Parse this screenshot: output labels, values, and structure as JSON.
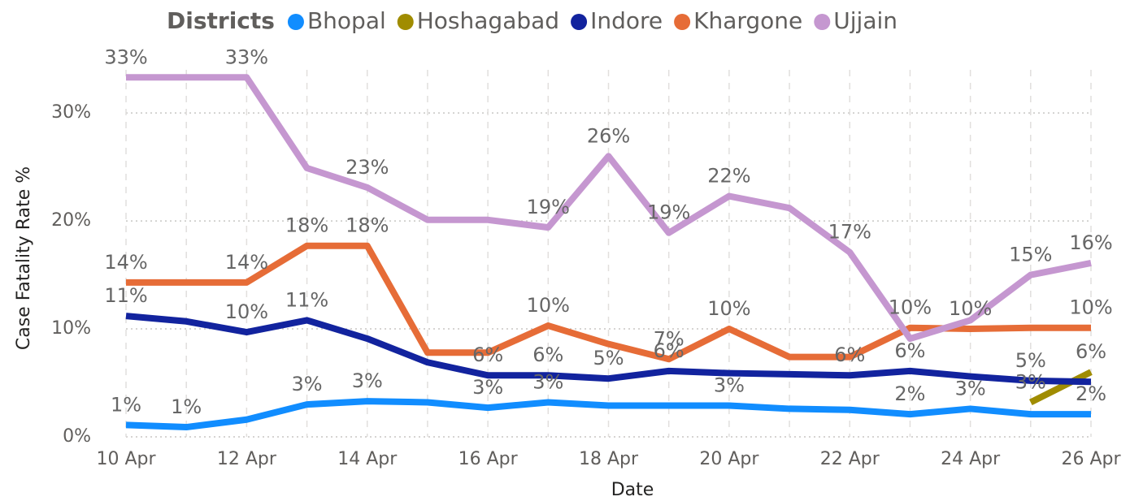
{
  "chart_data": {
    "type": "line",
    "legend_title": "Districts",
    "legend_position": "top",
    "x_label": "Date",
    "y_label": "Case Fatality Rate %",
    "categories": [
      "10 Apr",
      null,
      "12 Apr",
      null,
      "14 Apr",
      null,
      "16 Apr",
      null,
      "18 Apr",
      null,
      "20 Apr",
      null,
      "22 Apr",
      null,
      "24 Apr",
      null,
      "26 Apr"
    ],
    "ylim": [
      0,
      34
    ],
    "yticks": [
      {
        "value": 0,
        "label": "0%"
      },
      {
        "value": 10,
        "label": "10%"
      },
      {
        "value": 20,
        "label": "20%"
      },
      {
        "value": 30,
        "label": "30%"
      }
    ],
    "grid": true,
    "series": [
      {
        "name": "Bhopal",
        "color": "#118dff",
        "values": [
          1.1,
          0.9,
          1.6,
          3.0,
          3.3,
          3.2,
          2.7,
          3.2,
          2.9,
          2.9,
          2.9,
          2.6,
          2.5,
          2.1,
          2.6,
          2.1,
          2.1
        ],
        "value_labels": [
          "1%",
          "1%",
          null,
          "3%",
          "3%",
          null,
          "3%",
          "3%",
          null,
          null,
          "3%",
          null,
          null,
          "2%",
          "3%",
          null,
          "2%"
        ]
      },
      {
        "name": "Hoshagabad",
        "color": "#a08c00",
        "values": [
          null,
          null,
          null,
          null,
          null,
          null,
          null,
          null,
          null,
          null,
          null,
          null,
          null,
          null,
          null,
          3.2,
          6.0
        ],
        "value_labels": [
          null,
          null,
          null,
          null,
          null,
          null,
          null,
          null,
          null,
          null,
          null,
          null,
          null,
          null,
          null,
          "3%",
          "6%"
        ]
      },
      {
        "name": "Indore",
        "color": "#12239e",
        "values": [
          11.2,
          10.7,
          9.7,
          10.8,
          9.1,
          6.9,
          5.7,
          5.7,
          5.4,
          6.1,
          5.9,
          5.8,
          5.7,
          6.1,
          5.6,
          5.2,
          5.1
        ],
        "value_labels": [
          "11%",
          null,
          "10%",
          "11%",
          null,
          null,
          "6%",
          "6%",
          "5%",
          "6%",
          null,
          null,
          "6%",
          "6%",
          null,
          "5%",
          null
        ]
      },
      {
        "name": "Khargone",
        "color": "#e66c37",
        "values": [
          14.3,
          14.3,
          14.3,
          17.7,
          17.7,
          7.8,
          7.8,
          10.3,
          8.6,
          7.2,
          10.0,
          7.4,
          7.4,
          10.1,
          10.0,
          10.1,
          10.1
        ],
        "value_labels": [
          "14%",
          null,
          "14%",
          "18%",
          "18%",
          null,
          null,
          "10%",
          null,
          "7%",
          "10%",
          null,
          null,
          "10%",
          "10%",
          null,
          "10%"
        ]
      },
      {
        "name": "Ujjain",
        "color": "#c597d0",
        "values": [
          33.3,
          33.3,
          33.3,
          24.9,
          23.1,
          20.1,
          20.1,
          19.4,
          26.0,
          18.9,
          22.3,
          21.2,
          17.1,
          9.1,
          10.8,
          15.0,
          16.1
        ],
        "value_labels": [
          "33%",
          null,
          "33%",
          null,
          "23%",
          null,
          null,
          "19%",
          "26%",
          "19%",
          "22%",
          null,
          "17%",
          null,
          null,
          "15%",
          "16%"
        ]
      }
    ]
  }
}
